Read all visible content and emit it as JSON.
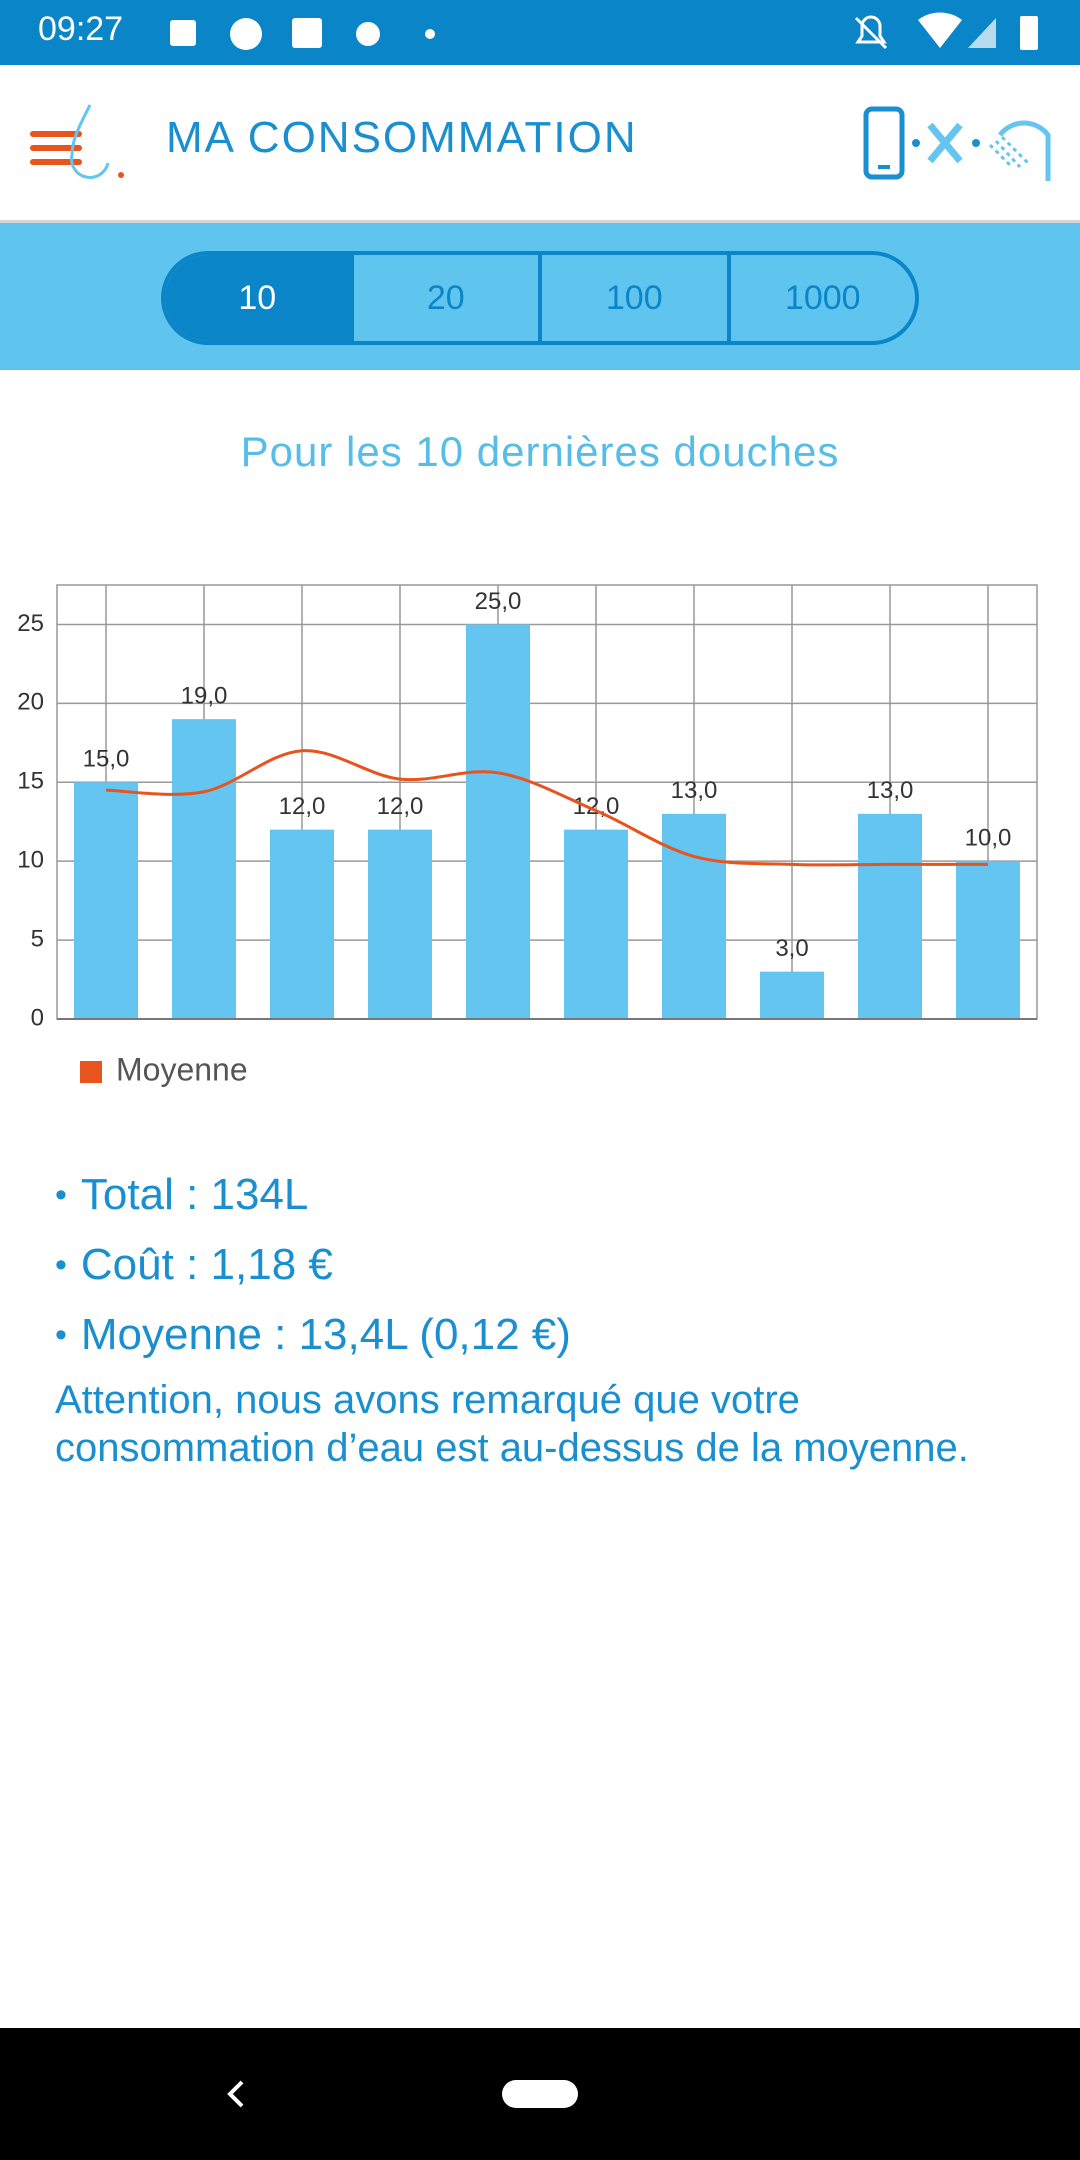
{
  "status_bar": {
    "time": "09:27"
  },
  "header": {
    "title": "MA CONSOMMATION"
  },
  "tabs": [
    "10",
    "20",
    "100",
    "1000"
  ],
  "chart_data": {
    "type": "bar",
    "title": "Pour les 10 dernières douches",
    "values": [
      15,
      19,
      12,
      12,
      25,
      12,
      13,
      3,
      13,
      10
    ],
    "value_labels": [
      "15,0",
      "19,0",
      "12,0",
      "12,0",
      "25,0",
      "12,0",
      "13,0",
      "3,0",
      "13,0",
      "10,0"
    ],
    "color": "#63c5f0",
    "series": [
      {
        "name": "Moyenne",
        "color": "#e8541e",
        "values": [
          14.5,
          14.4,
          17,
          15.2,
          15.6,
          13.2,
          10.3,
          9.8,
          9.8,
          9.8
        ]
      }
    ],
    "ylim": [
      0,
      27.5
    ],
    "yticks": [
      0,
      5,
      10,
      15,
      20,
      25
    ],
    "grid": true,
    "legend": "bottom-left"
  },
  "summary": {
    "items": [
      "Total : 134L",
      "Coût : 1,18 €",
      "Moyenne : 13,4L (0,12 €)"
    ],
    "note": "Attention, nous avons remarqué que votre consommation d’eau est au-dessus de la moyenne."
  }
}
